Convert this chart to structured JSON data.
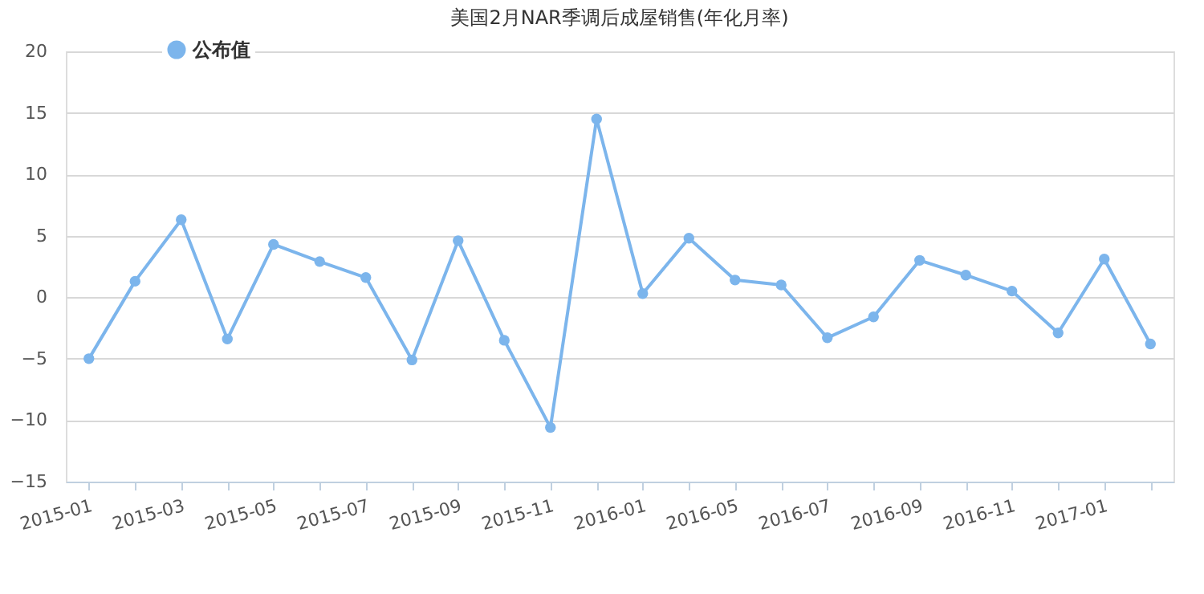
{
  "chart_data": {
    "type": "line",
    "title": "美国2月NAR季调后成屋销售(年化月率)",
    "categories": [
      "2015-01",
      null,
      "2015-03",
      null,
      "2015-05",
      null,
      "2015-07",
      null,
      "2015-09",
      null,
      "2015-11",
      null,
      "2016-01",
      null,
      "2016-05",
      null,
      "2016-07",
      null,
      "2016-09",
      null,
      "2016-11",
      null,
      "2017-01",
      null
    ],
    "series": [
      {
        "name": "公布值",
        "color": "#7cb5ec",
        "values": [
          -5.0,
          1.3,
          6.3,
          -3.4,
          4.3,
          2.9,
          1.6,
          -5.1,
          4.6,
          -3.5,
          -10.6,
          14.5,
          0.3,
          4.8,
          1.4,
          1.0,
          -3.3,
          -1.6,
          3.0,
          1.8,
          0.5,
          -2.9,
          3.1,
          -3.8
        ]
      }
    ],
    "ylim": [
      -15,
      20
    ],
    "yticks": [
      -15,
      -10,
      -5,
      0,
      5,
      10,
      15,
      20
    ],
    "grid": "y",
    "legend": "top left",
    "marker": "circle",
    "line_style": "solid"
  }
}
